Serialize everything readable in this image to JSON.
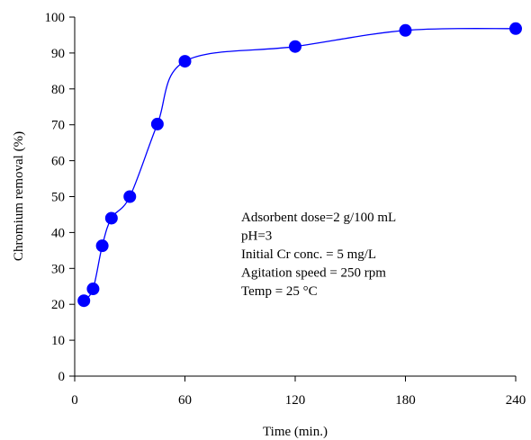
{
  "chart_data": {
    "type": "line",
    "title": "",
    "xlabel": "Time (min.)",
    "ylabel": "Chromium removal (%)",
    "xlim": [
      0,
      240
    ],
    "ylim": [
      0,
      100
    ],
    "x_ticks": [
      0,
      60,
      120,
      180,
      240
    ],
    "y_ticks": [
      0,
      10,
      20,
      30,
      40,
      50,
      60,
      70,
      80,
      90,
      100
    ],
    "grid": false,
    "legend": "none",
    "series": [
      {
        "x": [
          5,
          10,
          15,
          20,
          30,
          45,
          60,
          120,
          180,
          240
        ],
        "y": [
          21,
          24.3,
          36.3,
          44,
          50,
          70.2,
          87.7,
          91.8,
          96.3,
          96.8
        ],
        "color": "#0000ff",
        "smooth": true
      }
    ],
    "annotations": [
      "Adsorbent dose=2 g/100 mL",
      "pH=3",
      "Initial Cr conc. = 5 mg/L",
      "Agitation speed = 250 rpm",
      "Temp = 25 °C"
    ]
  }
}
